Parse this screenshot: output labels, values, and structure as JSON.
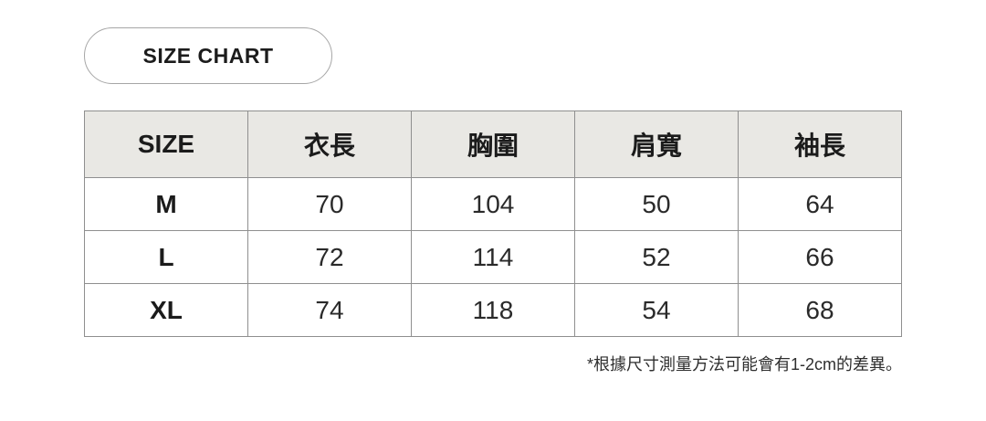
{
  "badge": {
    "label": "SIZE CHART"
  },
  "table": {
    "headers": [
      "SIZE",
      "衣長",
      "胸圍",
      "肩寬",
      "袖長"
    ],
    "rows": [
      {
        "size": "M",
        "values": [
          "70",
          "104",
          "50",
          "64"
        ]
      },
      {
        "size": "L",
        "values": [
          "72",
          "114",
          "52",
          "66"
        ]
      },
      {
        "size": "XL",
        "values": [
          "74",
          "118",
          "54",
          "68"
        ]
      }
    ]
  },
  "footnote": "*根據尺寸測量方法可能會有1-2cm的差異。",
  "colors": {
    "header_bg": "#e9e8e4",
    "table_border": "#8f8f8f",
    "badge_border": "#a6a6a6",
    "text": "#1f1f1f"
  },
  "chart_data": {
    "type": "table",
    "title": "SIZE CHART",
    "columns": [
      "SIZE",
      "衣長",
      "胸圍",
      "肩寬",
      "袖長"
    ],
    "rows": [
      [
        "M",
        70,
        104,
        50,
        64
      ],
      [
        "L",
        72,
        114,
        52,
        66
      ],
      [
        "XL",
        74,
        118,
        54,
        68
      ]
    ],
    "note": "*根據尺寸測量方法可能會有1-2cm的差異。",
    "units": "cm"
  }
}
